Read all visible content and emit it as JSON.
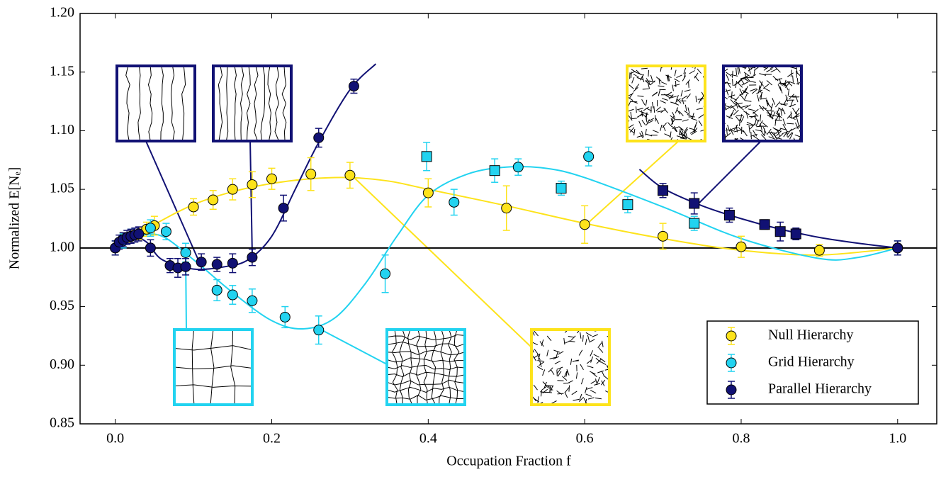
{
  "chart_data": {
    "type": "errorbar",
    "xlabel": "Occupation Fraction f",
    "ylabel": "Normalized E[Nₑ]",
    "xlim": [
      -0.045,
      1.05
    ],
    "ylim": [
      0.85,
      1.2
    ],
    "xticks": [
      {
        "value": 0,
        "label": "0.0"
      },
      {
        "value": 0.2,
        "label": "0.2"
      },
      {
        "value": 0.4,
        "label": "0.4"
      },
      {
        "value": 0.6,
        "label": "0.6"
      },
      {
        "value": 0.8,
        "label": "0.8"
      },
      {
        "value": 1,
        "label": "1.0"
      }
    ],
    "yticks": [
      {
        "value": 0.85,
        "label": "0.85"
      },
      {
        "value": 0.9,
        "label": "0.90"
      },
      {
        "value": 0.95,
        "label": "0.95"
      },
      {
        "value": 1,
        "label": "1.00"
      },
      {
        "value": 1.05,
        "label": "1.05"
      },
      {
        "value": 1.1,
        "label": "1.10"
      },
      {
        "value": 1.15,
        "label": "1.15"
      },
      {
        "value": 1.2,
        "label": "1.20"
      }
    ],
    "hline": 1,
    "legend": "lower right",
    "series": [
      {
        "name": "Null Hierarchy",
        "color": "#fde31b",
        "x": [
          0,
          0.01,
          0.02,
          0.03,
          0.04,
          0.05,
          0.1,
          0.125,
          0.15,
          0.175,
          0.2,
          0.25,
          0.3,
          0.4,
          0.5,
          0.6,
          0.7,
          0.8,
          0.9,
          1.0
        ],
        "values": [
          1.0,
          1.008,
          1.01,
          1.012,
          1.016,
          1.019,
          1.035,
          1.041,
          1.05,
          1.054,
          1.059,
          1.063,
          1.062,
          1.047,
          1.034,
          1.02,
          1.01,
          1.001,
          0.998,
          1.0
        ],
        "errors": [
          0.006,
          0.005,
          0.005,
          0.005,
          0.006,
          0.008,
          0.007,
          0.008,
          0.009,
          0.011,
          0.009,
          0.014,
          0.011,
          0.012,
          0.019,
          0.016,
          0.011,
          0.009,
          0.005,
          0.006
        ],
        "markers": [
          "o",
          "o",
          "o",
          "o",
          "o",
          "o",
          "o",
          "o",
          "o",
          "o",
          "o",
          "o",
          "o",
          "o",
          "o",
          "o",
          "o",
          "o",
          "o",
          "o"
        ],
        "fit_x": [
          0,
          0.05,
          0.1,
          0.15,
          0.2,
          0.25,
          0.3,
          0.35,
          0.4,
          0.5,
          0.6,
          0.7,
          0.8,
          0.9,
          1.0
        ],
        "fit_values": [
          1.0,
          1.02,
          1.037,
          1.048,
          1.055,
          1.059,
          1.06,
          1.057,
          1.05,
          1.036,
          1.021,
          1.008,
          0.998,
          0.994,
          1.0
        ]
      },
      {
        "name": "Grid Hierarchy",
        "color": "#22d3f0",
        "x": [
          0,
          0.01,
          0.02,
          0.045,
          0.065,
          0.09,
          0.13,
          0.15,
          0.175,
          0.217,
          0.26,
          0.345,
          0.398,
          0.433,
          0.485,
          0.515,
          0.57,
          0.605,
          0.655,
          0.74,
          1.0
        ],
        "values": [
          1.0,
          1.006,
          1.01,
          1.017,
          1.014,
          0.996,
          0.964,
          0.96,
          0.955,
          0.941,
          0.93,
          0.978,
          1.078,
          1.039,
          1.066,
          1.069,
          1.051,
          1.078,
          1.037,
          1.021,
          1.0
        ],
        "errors": [
          0.006,
          0.006,
          0.006,
          0.007,
          0.007,
          0.008,
          0.009,
          0.008,
          0.01,
          0.009,
          0.012,
          0.016,
          0.012,
          0.011,
          0.01,
          0.007,
          0.006,
          0.008,
          0.007,
          0.006,
          0.006
        ],
        "markers": [
          "o",
          "o",
          "o",
          "o",
          "o",
          "o",
          "o",
          "o",
          "o",
          "o",
          "o",
          "o",
          "s",
          "o",
          "s",
          "o",
          "s",
          "o",
          "s",
          "s",
          "o"
        ],
        "fit_x": [
          0,
          0.03,
          0.06,
          0.1,
          0.15,
          0.2,
          0.24,
          0.28,
          0.32,
          0.36,
          0.4,
          0.45,
          0.5,
          0.55,
          0.6,
          0.7,
          0.8,
          0.9,
          0.95,
          1.0
        ],
        "fit_values": [
          1.0,
          1.01,
          1.01,
          0.99,
          0.962,
          0.938,
          0.931,
          0.94,
          0.97,
          1.01,
          1.045,
          1.063,
          1.069,
          1.068,
          1.06,
          1.035,
          1.008,
          0.991,
          0.992,
          1.0
        ]
      },
      {
        "name": "Parallel Hierarchy",
        "color": "#111174",
        "x": [
          0,
          0.005,
          0.01,
          0.015,
          0.02,
          0.025,
          0.03,
          0.045,
          0.07,
          0.08,
          0.09,
          0.11,
          0.13,
          0.15,
          0.175,
          0.215,
          0.26,
          0.305,
          0.7,
          0.74,
          0.785,
          0.83,
          0.85,
          0.87,
          1.0
        ],
        "values": [
          1.0,
          1.005,
          1.007,
          1.009,
          1.01,
          1.011,
          1.012,
          1.0,
          0.985,
          0.983,
          0.984,
          0.988,
          0.986,
          0.987,
          0.992,
          1.034,
          1.094,
          1.138,
          1.049,
          1.038,
          1.028,
          1.02,
          1.014,
          1.012,
          1.0
        ],
        "errors": [
          0.006,
          0.006,
          0.006,
          0.006,
          0.006,
          0.006,
          0.006,
          0.007,
          0.006,
          0.008,
          0.007,
          0.007,
          0.006,
          0.008,
          0.007,
          0.011,
          0.008,
          0.006,
          0.006,
          0.009,
          0.006,
          0.004,
          0.008,
          0.005,
          0.006
        ],
        "markers": [
          "o",
          "o",
          "o",
          "o",
          "o",
          "o",
          "o",
          "o",
          "o",
          "o",
          "o",
          "o",
          "o",
          "o",
          "o",
          "o",
          "o",
          "o",
          "s",
          "s",
          "s",
          "s",
          "s",
          "s",
          "o"
        ],
        "fit_x": [
          0,
          0.02,
          0.04,
          0.06,
          0.1,
          0.14,
          0.17,
          0.2,
          0.23,
          0.26,
          0.3,
          0.333,
          null,
          0.67,
          0.7,
          0.75,
          0.8,
          0.85,
          0.9,
          0.95,
          1.0
        ],
        "fit_values": [
          1.0,
          1.01,
          1.005,
          0.99,
          0.982,
          0.984,
          0.99,
          1.01,
          1.05,
          1.09,
          1.135,
          1.157,
          null,
          1.067,
          1.051,
          1.036,
          1.025,
          1.016,
          1.009,
          1.004,
          1.0
        ]
      }
    ]
  }
}
